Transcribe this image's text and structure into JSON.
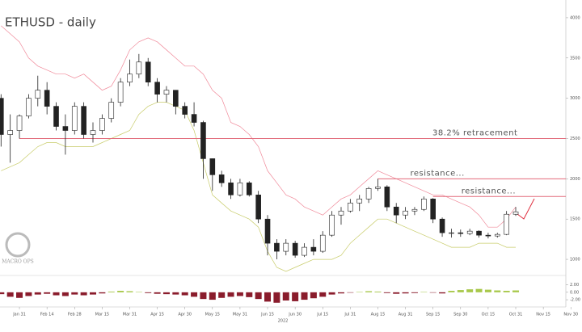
{
  "chart_data": {
    "type": "candlestick",
    "title": "ETHUSD - daily",
    "year_label": "2022",
    "logo": "MACRO OPS",
    "categories": [
      null,
      null,
      "Jan 31",
      null,
      null,
      "Feb 14",
      null,
      null,
      "Feb 28",
      null,
      null,
      "Mar 15",
      null,
      null,
      "Mar 31",
      null,
      null,
      "Apr 15",
      null,
      null,
      "Apr 30",
      null,
      null,
      "May 15",
      null,
      null,
      "May 31",
      null,
      null,
      "Jun 15",
      null,
      null,
      "Jun 30",
      null,
      null,
      "Jul 15",
      null,
      null,
      "Jul 31",
      null,
      null,
      "Aug 15",
      null,
      null,
      "Aug 31",
      null,
      null,
      "Sep 15",
      null,
      null,
      "Sep 30",
      null,
      null,
      "Oct 15",
      null,
      null,
      "Oct 31",
      null,
      null,
      "Nov 15",
      null,
      null,
      "Nov 30"
    ],
    "ohlc": [
      [
        3000,
        3050,
        2400,
        2550
      ],
      [
        2550,
        2800,
        2200,
        2600
      ],
      [
        2600,
        2800,
        2500,
        2780
      ],
      [
        2780,
        3050,
        2750,
        3000
      ],
      [
        3000,
        3280,
        2900,
        3100
      ],
      [
        3100,
        3200,
        2800,
        2900
      ],
      [
        2900,
        2950,
        2600,
        2650
      ],
      [
        2650,
        2800,
        2300,
        2600
      ],
      [
        2600,
        2950,
        2550,
        2900
      ],
      [
        2900,
        2950,
        2500,
        2550
      ],
      [
        2550,
        2700,
        2450,
        2600
      ],
      [
        2600,
        2800,
        2550,
        2750
      ],
      [
        2750,
        3000,
        2700,
        2950
      ],
      [
        2950,
        3250,
        2900,
        3200
      ],
      [
        3200,
        3480,
        3150,
        3300
      ],
      [
        3300,
        3550,
        3250,
        3450
      ],
      [
        3450,
        3500,
        3150,
        3200
      ],
      [
        3200,
        3250,
        2950,
        3050
      ],
      [
        3050,
        3150,
        2950,
        3100
      ],
      [
        3100,
        3100,
        2800,
        2900
      ],
      [
        2900,
        2950,
        2750,
        2800
      ],
      [
        2800,
        2950,
        2650,
        2700
      ],
      [
        2700,
        2720,
        2000,
        2250
      ],
      [
        2250,
        2250,
        1850,
        2050
      ],
      [
        2050,
        2100,
        1900,
        1950
      ],
      [
        1950,
        2000,
        1750,
        1800
      ],
      [
        1800,
        2000,
        1780,
        1950
      ],
      [
        1950,
        1970,
        1780,
        1800
      ],
      [
        1800,
        1850,
        1450,
        1500
      ],
      [
        1500,
        1550,
        1050,
        1200
      ],
      [
        1200,
        1250,
        1000,
        1100
      ],
      [
        1100,
        1250,
        1050,
        1200
      ],
      [
        1200,
        1230,
        1020,
        1050
      ],
      [
        1050,
        1200,
        1030,
        1150
      ],
      [
        1150,
        1250,
        1050,
        1100
      ],
      [
        1100,
        1350,
        1080,
        1300
      ],
      [
        1300,
        1600,
        1280,
        1550
      ],
      [
        1550,
        1650,
        1430,
        1600
      ],
      [
        1600,
        1750,
        1580,
        1700
      ],
      [
        1700,
        1800,
        1600,
        1750
      ],
      [
        1750,
        1900,
        1700,
        1880
      ],
      [
        1880,
        2000,
        1850,
        1900
      ],
      [
        1900,
        1920,
        1600,
        1650
      ],
      [
        1650,
        1700,
        1450,
        1550
      ],
      [
        1550,
        1650,
        1500,
        1600
      ],
      [
        1600,
        1650,
        1550,
        1620
      ],
      [
        1620,
        1780,
        1600,
        1750
      ],
      [
        1750,
        1760,
        1450,
        1500
      ],
      [
        1500,
        1520,
        1280,
        1330
      ],
      [
        1330,
        1380,
        1270,
        1330
      ],
      [
        1330,
        1370,
        1280,
        1320
      ],
      [
        1320,
        1380,
        1300,
        1350
      ],
      [
        1350,
        1360,
        1270,
        1300
      ],
      [
        1300,
        1330,
        1260,
        1290
      ],
      [
        1290,
        1330,
        1270,
        1310
      ],
      [
        1310,
        1600,
        1300,
        1560
      ],
      [
        1560,
        1650,
        1540,
        1590
      ],
      null,
      null,
      null,
      null,
      null,
      null
    ],
    "upper_band": {
      "color": "#f08a9a",
      "values": [
        3900,
        3800,
        3700,
        3500,
        3400,
        3350,
        3300,
        3300,
        3250,
        3300,
        3200,
        3100,
        3150,
        3350,
        3600,
        3700,
        3750,
        3700,
        3600,
        3500,
        3400,
        3400,
        3300,
        3100,
        3000,
        2700,
        2650,
        2550,
        2400,
        2100,
        1950,
        1800,
        1750,
        1650,
        1600,
        1550,
        1650,
        1750,
        1800,
        1900,
        2000,
        2100,
        2050,
        2000,
        1950,
        1900,
        1850,
        1800,
        1800,
        1750,
        1700,
        1650,
        1550,
        1400,
        1400,
        1500,
        1650,
        null,
        null,
        null,
        null,
        null,
        null
      ]
    },
    "lower_band": {
      "color": "#c8cc6a",
      "values": [
        2100,
        2150,
        2200,
        2300,
        2400,
        2450,
        2450,
        2400,
        2400,
        2400,
        2400,
        2450,
        2500,
        2550,
        2600,
        2800,
        2900,
        2950,
        2950,
        2900,
        2850,
        2600,
        2200,
        1800,
        1700,
        1600,
        1550,
        1500,
        1400,
        1100,
        900,
        850,
        900,
        950,
        1000,
        1000,
        1000,
        1050,
        1200,
        1300,
        1400,
        1500,
        1500,
        1450,
        1400,
        1350,
        1300,
        1250,
        1200,
        1150,
        1150,
        1150,
        1200,
        1200,
        1200,
        1150,
        1150,
        null,
        null,
        null,
        null,
        null,
        null
      ]
    },
    "ylim": [
      810,
      4220
    ],
    "yticks": [
      1000,
      1500,
      2000,
      2500,
      3000,
      3500,
      4000
    ],
    "levels": [
      {
        "label": "38.2% retracement",
        "value": 2500,
        "start": "Jan 31",
        "color": "#e26a7a"
      },
      {
        "label": "resistance...",
        "value": 2000,
        "start": "Aug 15",
        "color": "#e26a7a"
      },
      {
        "label": "resistance...",
        "value": 1780,
        "start": "Sep 15",
        "color": "#e26a7a"
      }
    ],
    "oscillator": {
      "values": [
        -0.5,
        -1.2,
        -1.5,
        -1,
        -0.6,
        -0.4,
        -0.8,
        -1,
        -0.6,
        -0.8,
        -0.6,
        -0.3,
        0.2,
        0.4,
        0.3,
        0.1,
        -0.2,
        -0.4,
        -0.5,
        -0.6,
        -0.8,
        -1.2,
        -1.8,
        -2,
        -1.5,
        -1.2,
        -1,
        -1.3,
        -1.8,
        -2.5,
        -2.8,
        -2.2,
        -2.4,
        -2,
        -1.6,
        -1.2,
        -0.6,
        -0.3,
        -0.1,
        0.1,
        0.3,
        0.2,
        -0.2,
        -0.4,
        -0.3,
        -0.2,
        0.1,
        -0.1,
        -0.3,
        0.4,
        0.6,
        0.8,
        0.9,
        0.7,
        0.5,
        0.4,
        0.5,
        null,
        null,
        null,
        null,
        null,
        null
      ],
      "positive_color": "#a8c84a",
      "negative_color": "#8a1c2c",
      "ylim": [
        -3.5,
        3
      ],
      "yticks": [
        {
          "value": 2,
          "label": "2.00"
        },
        {
          "value": 0,
          "label": "0.00"
        },
        {
          "value": -2,
          "label": "-2.00"
        }
      ]
    }
  }
}
